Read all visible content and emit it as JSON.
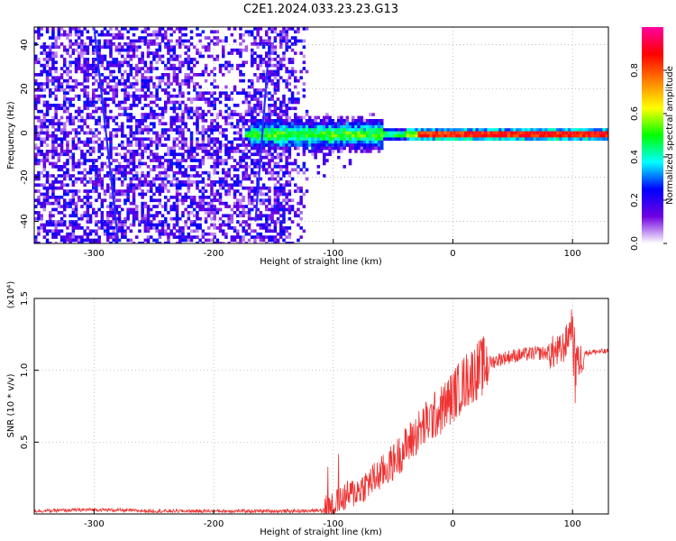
{
  "figure_title": "C2E1.2024.033.23.23.G13",
  "chart_data": [
    {
      "type": "heatmap",
      "xlabel": "Height of straight line (km)",
      "ylabel": "Frequency (Hz)",
      "xlim": [
        -350,
        130
      ],
      "ylim": [
        -50,
        48
      ],
      "x_ticks": [
        -300,
        -200,
        -100,
        0,
        100
      ],
      "y_ticks": [
        -40,
        -20,
        0,
        20,
        40
      ],
      "colorbar": {
        "label": "Normalized spectral amplitude",
        "range": [
          0,
          1
        ],
        "ticks": [
          "0.0",
          "0.2",
          "0.4",
          "0.6",
          "0.8"
        ],
        "colors": [
          "#ffffff",
          "#7000e0",
          "#0000ff",
          "#00ffff",
          "#00ff00",
          "#ffff00",
          "#ff8000",
          "#ff0000",
          "#ff00a0"
        ]
      },
      "tracks": [
        {
          "x0": -300,
          "x1": -280,
          "y0": 48,
          "y1": -48
        },
        {
          "x0": -165,
          "x1": -155,
          "y0": -40,
          "y1": 30
        }
      ],
      "ridge_frequency": 0,
      "grid": true
    },
    {
      "type": "line",
      "xlabel": "Height of straight line (km)",
      "ylabel": "SNR (10 * v/v)",
      "y_multiplier": "(x10⁴)",
      "xlim": [
        -350,
        130
      ],
      "ylim": [
        0,
        1.5
      ],
      "x_ticks": [
        -300,
        -200,
        -100,
        0,
        100
      ],
      "y_ticks": [
        "0.5",
        "1.0",
        "1.5"
      ],
      "color": "#ee3333",
      "grid": true,
      "series": [
        {
          "x": [
            -350,
            -300,
            -250,
            -200,
            -150,
            -120,
            -110,
            -100,
            -90,
            -80,
            -70,
            -60,
            -50,
            -40,
            -30,
            -20,
            -10,
            0,
            10,
            20,
            30,
            40,
            50,
            60,
            70,
            80,
            90,
            95,
            100,
            105,
            110,
            120,
            130
          ],
          "y": [
            0.02,
            0.03,
            0.02,
            0.02,
            0.02,
            0.02,
            0.03,
            0.06,
            0.12,
            0.16,
            0.22,
            0.28,
            0.36,
            0.46,
            0.56,
            0.65,
            0.72,
            0.82,
            0.92,
            1.0,
            1.05,
            1.08,
            1.1,
            1.11,
            1.12,
            1.12,
            1.13,
            1.2,
            1.35,
            1.05,
            1.12,
            1.13,
            1.13
          ]
        }
      ]
    }
  ]
}
